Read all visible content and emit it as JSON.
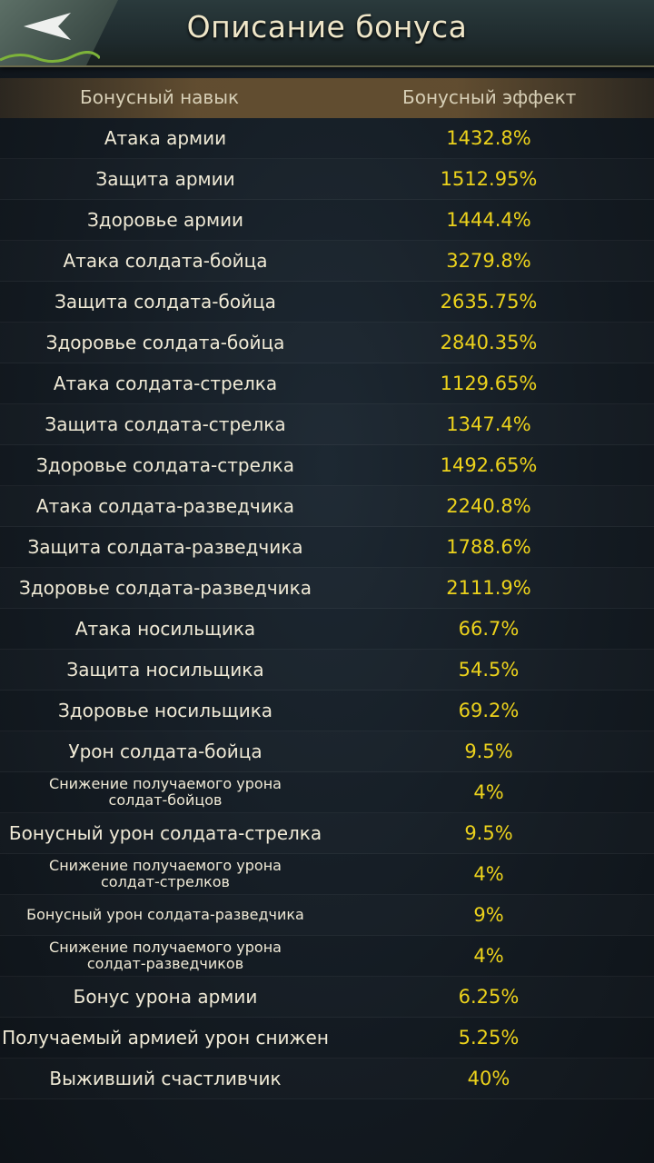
{
  "header": {
    "title": "Описание бонуса",
    "back_icon": "back-arrow-icon"
  },
  "table": {
    "columns": [
      "Бонусный навык",
      "Бонусный эффект"
    ],
    "value_color": "#ecd21c",
    "rows": [
      {
        "skill": "Атака армии",
        "value": "1432.8%"
      },
      {
        "skill": "Защита армии",
        "value": "1512.95%"
      },
      {
        "skill": "Здоровье армии",
        "value": "1444.4%"
      },
      {
        "skill": "Атака солдата-бойца",
        "value": "3279.8%"
      },
      {
        "skill": "Защита солдата-бойца",
        "value": "2635.75%"
      },
      {
        "skill": "Здоровье солдата-бойца",
        "value": "2840.35%"
      },
      {
        "skill": "Атака солдата-стрелка",
        "value": "1129.65%"
      },
      {
        "skill": "Защита солдата-стрелка",
        "value": "1347.4%"
      },
      {
        "skill": "Здоровье солдата-стрелка",
        "value": "1492.65%"
      },
      {
        "skill": "Атака солдата-разведчика",
        "value": "2240.8%"
      },
      {
        "skill": "Защита солдата-разведчика",
        "value": "1788.6%"
      },
      {
        "skill": "Здоровье солдата-разведчика",
        "value": "2111.9%"
      },
      {
        "skill": "Атака носильщика",
        "value": "66.7%"
      },
      {
        "skill": "Защита носильщика",
        "value": "54.5%"
      },
      {
        "skill": "Здоровье носильщика",
        "value": "69.2%"
      },
      {
        "skill": "Урон солдата-бойца",
        "value": "9.5%"
      },
      {
        "skill": "Снижение получаемого урона\nсолдат-бойцов",
        "value": "4%",
        "small": true
      },
      {
        "skill": "Бонусный урон солдата-стрелка",
        "value": "9.5%"
      },
      {
        "skill": "Снижение получаемого урона\nсолдат-стрелков",
        "value": "4%",
        "small": true
      },
      {
        "skill": "Бонусный урон солдата-разведчика",
        "value": "9%",
        "small": true
      },
      {
        "skill": "Снижение получаемого урона\nсолдат-разведчиков",
        "value": "4%",
        "small": true
      },
      {
        "skill": "Бонус урона армии",
        "value": "6.25%"
      },
      {
        "skill": "Получаемый армией урон снижен",
        "value": "5.25%"
      },
      {
        "skill": "Выживший счастливчик",
        "value": "40%"
      }
    ]
  }
}
